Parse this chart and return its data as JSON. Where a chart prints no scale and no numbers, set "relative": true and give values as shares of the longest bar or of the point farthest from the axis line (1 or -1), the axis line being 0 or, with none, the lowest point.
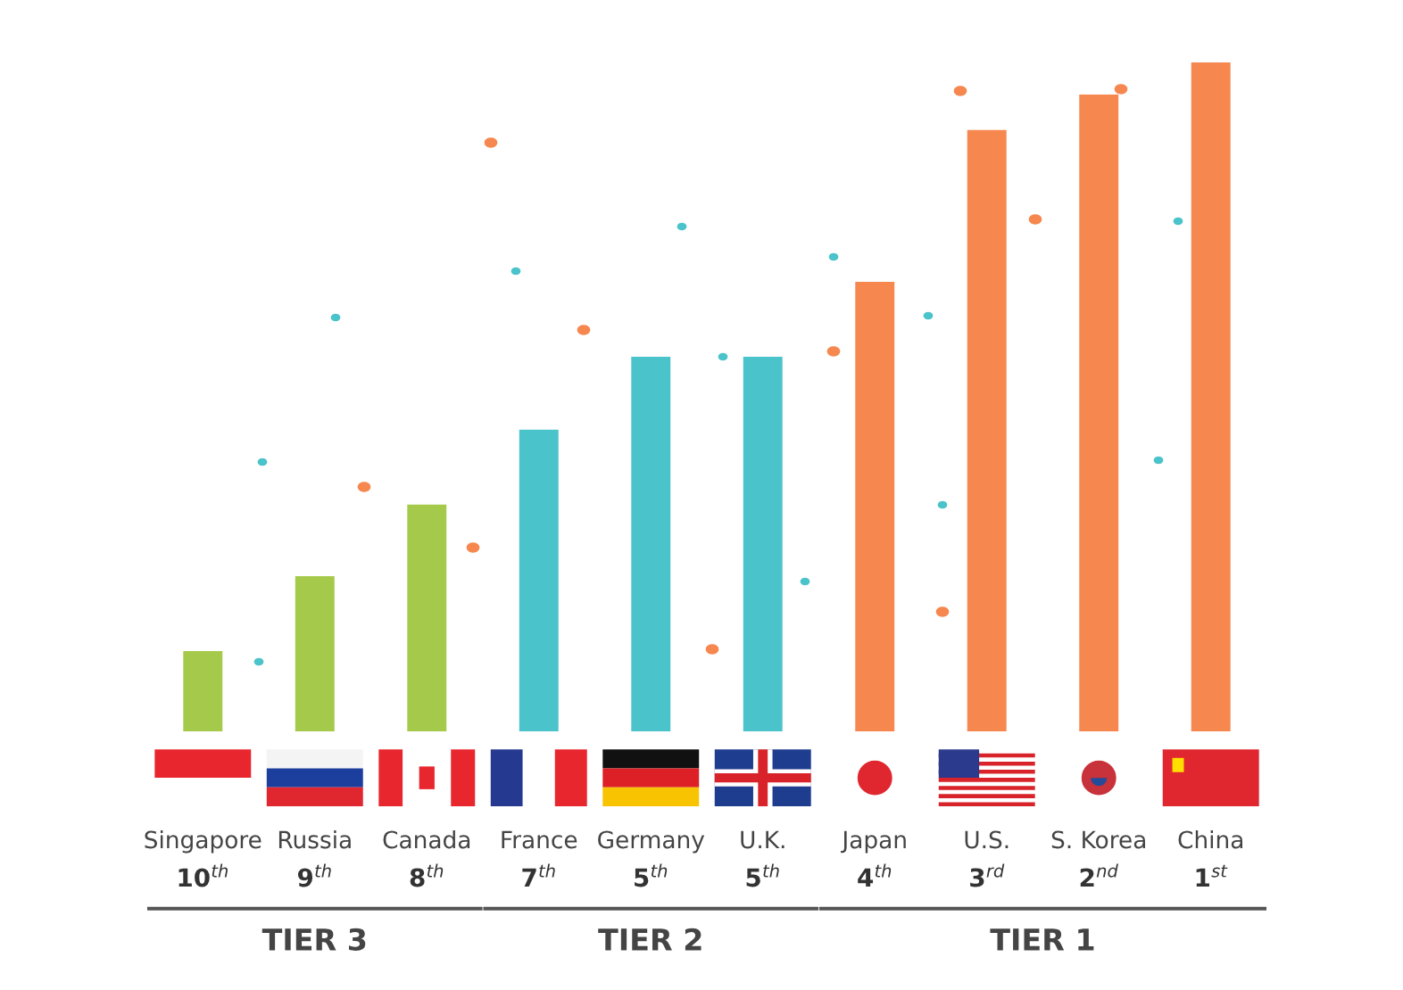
{
  "chart_data": {
    "type": "bar",
    "relative": true,
    "categories": [
      "Singapore\n10$^{th}$",
      "Russia\n9$^{th}$",
      "Canada\n8$^{th}$",
      "France\n7$^{th}$",
      "Germany\n5$^{th}$",
      "U.K.\n5$^{th}$",
      "Japan\n4$^{th}$",
      "U.S.\n3$^{rd}$",
      "S. Korea\n2$^{nd}$",
      "China\n1$^{st}$"
    ],
    "values": [
      0.12,
      0.232,
      0.339,
      0.451,
      0.56,
      0.56,
      0.672,
      0.899,
      0.952,
      1.0
    ],
    "colors": [
      "#a5c94a",
      "#a5c94a",
      "#a5c94a",
      "#4bc3cb",
      "#4bc3cb",
      "#4bc3cb",
      "#f5874f",
      "#f5874f",
      "#f5874f",
      "#f5874f"
    ],
    "annotations": [
      "TIER 3",
      "TIER 2",
      "TIER 1"
    ]
  }
}
